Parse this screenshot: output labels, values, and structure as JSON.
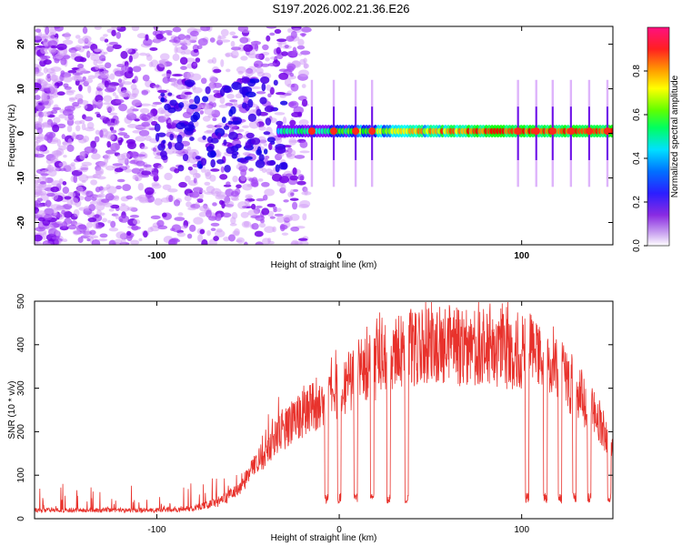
{
  "title": "S197.2026.002.21.36.E26",
  "chart_data": [
    {
      "type": "heatmap",
      "xlabel": "Height of straight line (km)",
      "ylabel": "Frequency (Hz)",
      "xlim": [
        -167,
        150
      ],
      "ylim": [
        -25,
        24
      ],
      "xticks": [
        -100,
        0,
        100
      ],
      "yticks": [
        -20,
        -10,
        0,
        10,
        20
      ],
      "colorbar": {
        "label": "Normalized spectral amplitude",
        "range": [
          0,
          1
        ],
        "ticks": [
          "0.0",
          "0.2",
          "0.4",
          "0.6",
          "0.8"
        ]
      },
      "features": {
        "carrier_frequency_hz": 0.5,
        "noise_region_km": [
          -167,
          -30
        ],
        "spike_heights_km": [
          -15,
          -3,
          9,
          18,
          98,
          108,
          117,
          127,
          137,
          147
        ]
      }
    },
    {
      "type": "line",
      "xlabel": "Height of straight line (km)",
      "ylabel": "SNR (10 * v/v)",
      "xlim": [
        -167,
        150
      ],
      "ylim": [
        0,
        500
      ],
      "xticks": [
        -100,
        0,
        100
      ],
      "yticks": [
        0,
        100,
        200,
        300,
        400,
        500
      ],
      "color": "#e8322c",
      "profile_x": [
        -167,
        -100,
        -80,
        -65,
        -55,
        -45,
        -35,
        -25,
        -15,
        -5,
        5,
        15,
        30,
        40,
        50,
        80,
        95,
        110,
        120,
        130,
        140,
        150
      ],
      "profile_y": [
        20,
        20,
        25,
        40,
        70,
        130,
        190,
        230,
        260,
        290,
        320,
        350,
        385,
        400,
        410,
        400,
        390,
        400,
        360,
        300,
        250,
        160
      ],
      "dropout_ranges_km": [
        [
          -8,
          -6
        ],
        [
          -1,
          1
        ],
        [
          8,
          10
        ],
        [
          17,
          19
        ],
        [
          26,
          28
        ],
        [
          36,
          38
        ],
        [
          102,
          104
        ],
        [
          112,
          114
        ],
        [
          120,
          122
        ],
        [
          128,
          130
        ],
        [
          136,
          138
        ],
        [
          147,
          149
        ]
      ]
    }
  ]
}
